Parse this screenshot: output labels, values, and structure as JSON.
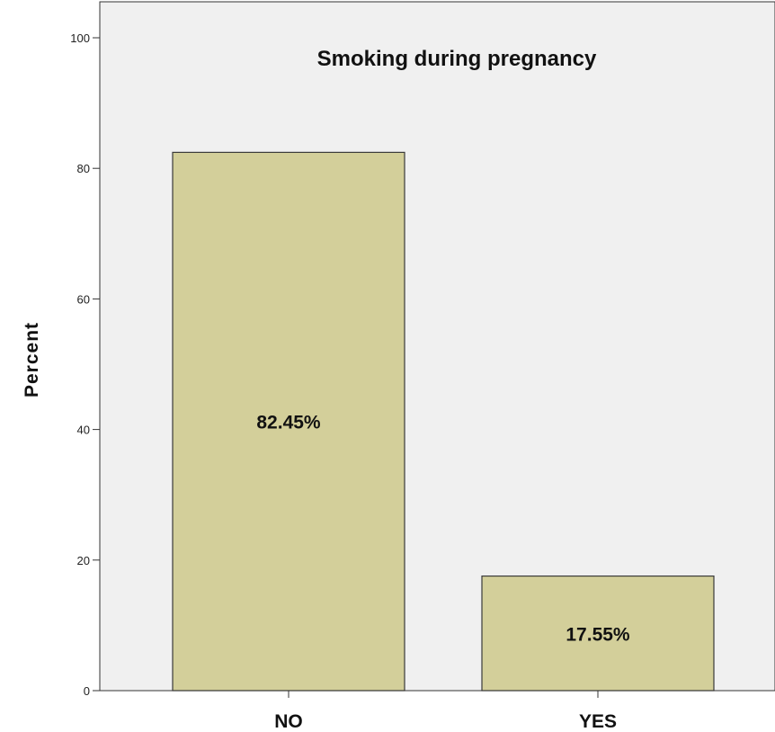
{
  "chart_data": {
    "type": "bar",
    "title": "Smoking during pregnancy",
    "ylabel": "Percent",
    "xlabel": "",
    "categories": [
      "NO",
      "YES"
    ],
    "values": [
      82.45,
      17.55
    ],
    "data_labels": [
      "82.45%",
      "17.55%"
    ],
    "ylim": [
      0,
      100
    ],
    "yticks": [
      "0",
      "20",
      "40",
      "60",
      "80",
      "100"
    ],
    "grid": false,
    "legend": "none"
  },
  "colors": {
    "bar_fill": "#d3cf9a",
    "bar_stroke": "#3a3a3a",
    "plot_background": "#f0f0f0",
    "axis": "#333333"
  }
}
